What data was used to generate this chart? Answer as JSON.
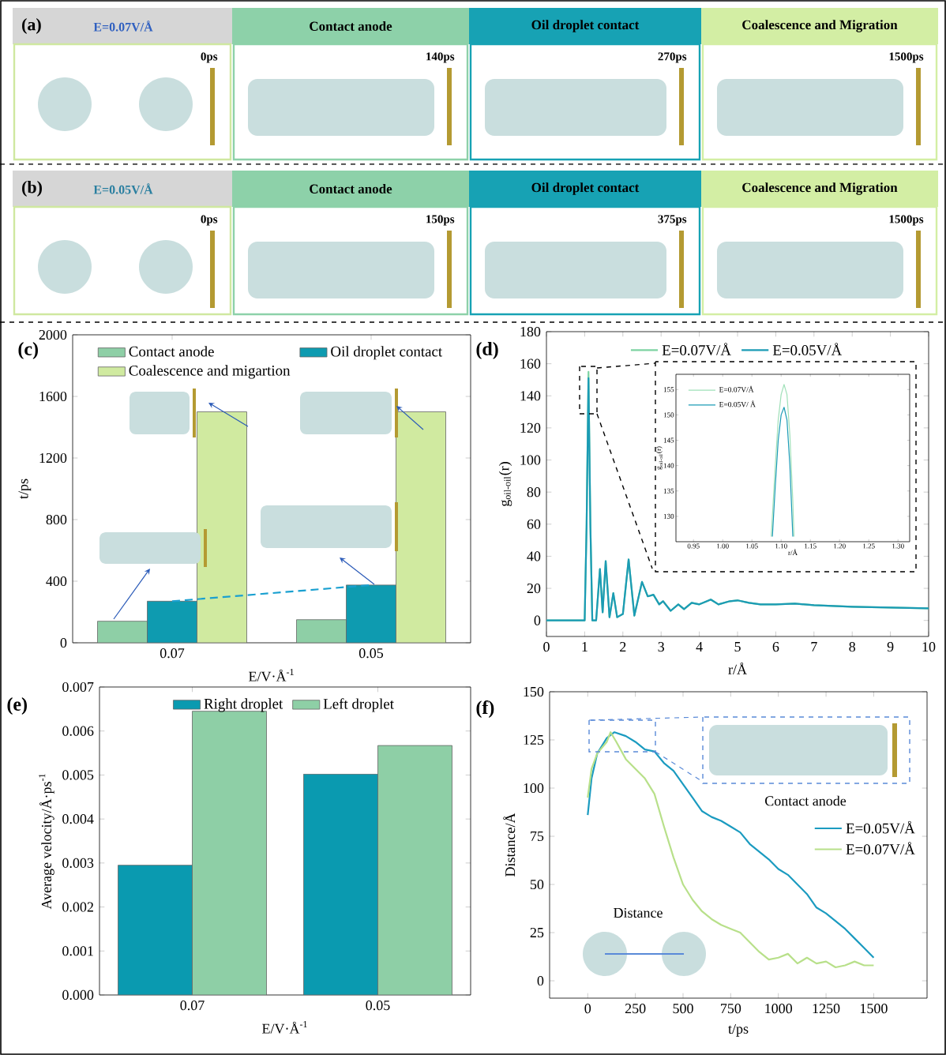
{
  "chart_data": [
    {
      "type": "other",
      "annotations": [
        "(a)",
        "E=0.07V/Å",
        "Contact anode",
        "Oil droplet contact",
        "Coalescence and Migration",
        "0ps",
        "140ps",
        "270ps",
        "1500ps",
        "(b)",
        "E=0.05V/Å",
        "Contact anode",
        "Oil droplet contact",
        "Coalescence and Migration",
        "0ps",
        "150ps",
        "375ps",
        "1500ps"
      ]
    },
    {
      "type": "bar",
      "title": "(c)",
      "xlabel": "E/V·Å$^{-1}$",
      "ylabel": "t/ps",
      "categories": [
        "0.07",
        "0.05"
      ],
      "legend": "top",
      "ylim": [
        0,
        2000
      ],
      "yticks": [
        0,
        400,
        800,
        1200,
        1600,
        2000
      ],
      "series": [
        {
          "name": "Contact anode",
          "color": "#8ecfa6",
          "values": [
            140,
            150
          ]
        },
        {
          "name": "Oil droplet contact",
          "color": "#0e9bb0",
          "values": [
            270,
            375
          ]
        },
        {
          "name": "Coalescence and migartion",
          "color": "#d0eaa0",
          "values": [
            1500,
            1500
          ]
        },
        {
          "type": "line",
          "color": "#1aa0d0",
          "line_style": "dashed",
          "values": [
            270,
            375
          ]
        }
      ]
    },
    {
      "type": "line",
      "title": "(d)",
      "xlabel": "r/Å",
      "ylabel": "g$_{oil-oil}$(r)",
      "legend": "top",
      "xlim": [
        0,
        10
      ],
      "ylim": [
        -10,
        180
      ],
      "xticks": [
        0,
        1,
        2,
        3,
        4,
        5,
        6,
        7,
        8,
        9,
        10
      ],
      "yticks": [
        0,
        20,
        40,
        60,
        80,
        100,
        120,
        140,
        160,
        180
      ],
      "series": [
        {
          "name": "E=0.07V/Å",
          "color": "#7dd3a2",
          "x": [
            0,
            1.0,
            1.05,
            1.1,
            1.15,
            1.2,
            1.3,
            1.4,
            1.47,
            1.55,
            1.65,
            1.75,
            1.85,
            2.0,
            2.15,
            2.3,
            2.5,
            2.65,
            2.8,
            2.95,
            3.05,
            3.25,
            3.45,
            3.6,
            3.8,
            4.0,
            4.3,
            4.5,
            4.8,
            5.0,
            5.3,
            5.6,
            6.0,
            6.5,
            7.0,
            8.0,
            9.0,
            10.0
          ],
          "values": [
            0,
            0,
            60,
            155,
            60,
            0,
            0,
            32,
            5,
            37,
            2,
            17,
            2,
            4,
            38,
            3,
            24,
            15,
            16,
            10,
            12,
            6,
            10,
            7,
            11,
            10,
            13,
            10,
            12,
            12.5,
            11,
            10,
            10,
            10.5,
            9.5,
            8.5,
            8,
            7.5
          ]
        },
        {
          "name": "E=0.05V/Å",
          "color": "#1b9bb5",
          "x": [
            0,
            1.0,
            1.05,
            1.1,
            1.15,
            1.2,
            1.3,
            1.4,
            1.47,
            1.55,
            1.65,
            1.75,
            1.85,
            2.0,
            2.15,
            2.3,
            2.5,
            2.65,
            2.8,
            2.95,
            3.05,
            3.25,
            3.45,
            3.6,
            3.8,
            4.0,
            4.3,
            4.5,
            4.8,
            5.0,
            5.3,
            5.6,
            6.0,
            6.5,
            7.0,
            8.0,
            9.0,
            10.0
          ],
          "values": [
            0,
            0,
            58,
            151,
            58,
            0,
            0,
            32,
            5,
            37,
            2,
            17,
            2,
            4,
            38,
            3,
            24,
            15,
            16,
            10,
            12,
            6,
            10,
            7,
            11,
            10,
            13,
            10,
            12,
            12.5,
            11,
            10,
            10,
            10.5,
            9.5,
            8.5,
            8,
            7.5
          ]
        }
      ]
    },
    {
      "type": "line",
      "xlabel": "r/Å",
      "ylabel": "g$_{oil-oil}$(r)",
      "legend": "top left",
      "xlim": [
        0.92,
        1.32
      ],
      "ylim": [
        125,
        158
      ],
      "xticks": [
        {
          "value": 0.95,
          "label": "0.95"
        },
        {
          "value": 1.0,
          "label": "1.00"
        },
        {
          "value": 1.05,
          "label": "1.05"
        },
        {
          "value": 1.1,
          "label": "1.10"
        },
        {
          "value": 1.15,
          "label": "1.15"
        },
        {
          "value": 1.2,
          "label": "1.20"
        },
        {
          "value": 1.25,
          "label": "1.25"
        },
        {
          "value": 1.3,
          "label": "1.30"
        }
      ],
      "yticks": [
        130,
        135,
        140,
        145,
        150,
        155
      ],
      "series": [
        {
          "name": "E=0.07V/Å",
          "color": "#9fe0b8",
          "x": [
            1.083,
            1.09,
            1.095,
            1.1,
            1.105,
            1.11,
            1.115,
            1.12,
            1.122
          ],
          "values": [
            126,
            140,
            149,
            154,
            156,
            154,
            146,
            133,
            126
          ]
        },
        {
          "name": "E=0.05V/ Å",
          "color": "#1b9bb5",
          "x": [
            1.085,
            1.09,
            1.095,
            1.1,
            1.105,
            1.11,
            1.115,
            1.12
          ],
          "values": [
            126,
            136,
            145,
            150,
            151.5,
            149,
            140,
            126
          ]
        }
      ]
    },
    {
      "type": "bar",
      "title": "(e)",
      "xlabel": "E/V·Å$^{-1}$",
      "ylabel": "Average velocity/Å·ps$^{-1}$",
      "categories": [
        "0.07",
        "0.05"
      ],
      "legend": "top",
      "ylim": [
        0,
        0.007
      ],
      "yticks": [
        {
          "value": 0,
          "label": "0.000"
        },
        {
          "value": 0.001,
          "label": "0.001"
        },
        {
          "value": 0.002,
          "label": "0.002"
        },
        {
          "value": 0.003,
          "label": "0.003"
        },
        {
          "value": 0.004,
          "label": "0.004"
        },
        {
          "value": 0.005,
          "label": "0.005"
        },
        {
          "value": 0.006,
          "label": "0.006"
        },
        {
          "value": 0.007,
          "label": "0.007"
        }
      ],
      "series": [
        {
          "name": "Right droplet",
          "color": "#0a9ab0",
          "values": [
            0.00295,
            0.00502
          ]
        },
        {
          "name": "Left droplet",
          "color": "#8ecfa6",
          "values": [
            0.00645,
            0.00567
          ]
        }
      ]
    },
    {
      "type": "line",
      "title": "(f)",
      "xlabel": "t/ps",
      "ylabel": "Distance/Å",
      "legend": "right",
      "xlim": [
        -200,
        1780
      ],
      "ylim": [
        -9,
        150
      ],
      "xticks": [
        0,
        250,
        500,
        750,
        1000,
        1250,
        1500
      ],
      "yticks": [
        0,
        25,
        50,
        75,
        100,
        125,
        150
      ],
      "annotations": [
        "Contact anode",
        "Distance"
      ],
      "series": [
        {
          "name": "E=0.05V/Å",
          "color": "#1b9bc0",
          "x": [
            0,
            20,
            50,
            100,
            140,
            200,
            250,
            300,
            350,
            400,
            450,
            500,
            550,
            600,
            650,
            700,
            750,
            800,
            850,
            900,
            950,
            1000,
            1050,
            1100,
            1150,
            1200,
            1250,
            1300,
            1350,
            1400,
            1450,
            1500
          ],
          "values": [
            86,
            105,
            118,
            126,
            129,
            127,
            124,
            120,
            119,
            113,
            109,
            102,
            95,
            88,
            85,
            83,
            80,
            77,
            71,
            67,
            63,
            58,
            55,
            50,
            45,
            38,
            35,
            31,
            27,
            22,
            17,
            12
          ]
        },
        {
          "name": "E=0.07V/Å",
          "color": "#b8e08a",
          "x": [
            0,
            20,
            50,
            100,
            120,
            150,
            200,
            250,
            300,
            350,
            400,
            450,
            500,
            550,
            600,
            650,
            700,
            750,
            800,
            850,
            900,
            950,
            1000,
            1050,
            1100,
            1150,
            1200,
            1250,
            1300,
            1350,
            1400,
            1450,
            1500
          ],
          "values": [
            95,
            110,
            118,
            124,
            129,
            124,
            115,
            110,
            105,
            97,
            80,
            64,
            50,
            42,
            36,
            32,
            29,
            27,
            25,
            20,
            15,
            11,
            12,
            14,
            9,
            12,
            9,
            10,
            7,
            8,
            10,
            8,
            8
          ]
        }
      ]
    }
  ]
}
